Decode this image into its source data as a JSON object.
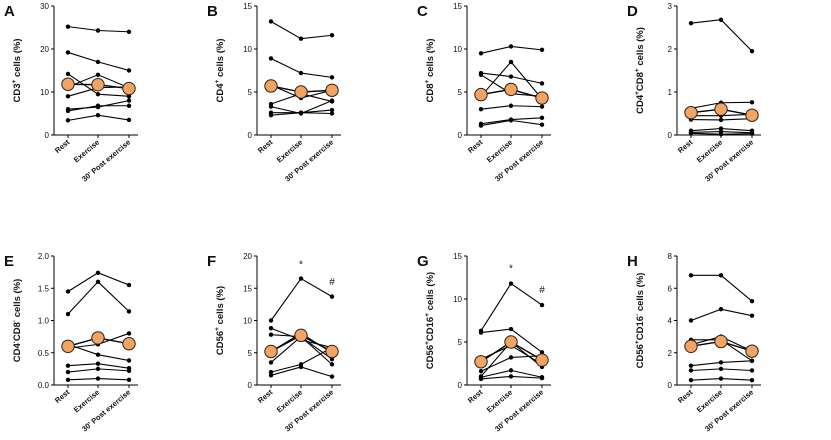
{
  "figure": {
    "categories": [
      "Rest",
      "Exercise",
      "30' Post exercise"
    ],
    "mean_marker_color": "#f4a460",
    "mean_marker_stroke": "#222222",
    "line_color": "#000000"
  },
  "chart_data": [
    {
      "type": "line",
      "letter": "A",
      "ylabel": [
        [
          "CD3",
          false
        ],
        [
          "+",
          true
        ],
        [
          " cells (%)",
          false
        ]
      ],
      "ylim": [
        0,
        30
      ],
      "yticks": [
        0,
        10,
        20,
        30
      ],
      "subjects": [
        [
          25.2,
          24.3,
          24.0
        ],
        [
          19.2,
          17.0,
          15.0
        ],
        [
          14.2,
          9.5,
          9.0
        ],
        [
          11.2,
          14.0,
          11.0
        ],
        [
          9.0,
          11.0,
          11.2
        ],
        [
          6.0,
          6.5,
          8.0
        ],
        [
          5.6,
          6.8,
          6.8
        ],
        [
          3.4,
          4.6,
          3.5
        ]
      ],
      "mean": [
        11.8,
        11.7,
        10.8
      ],
      "annotations": []
    },
    {
      "type": "line",
      "letter": "B",
      "ylabel": [
        [
          "CD4",
          false
        ],
        [
          "+",
          true
        ],
        [
          " cells (%)",
          false
        ]
      ],
      "ylim": [
        0,
        15
      ],
      "yticks": [
        0,
        5,
        10,
        15
      ],
      "subjects": [
        [
          13.2,
          11.2,
          11.6
        ],
        [
          8.9,
          7.2,
          6.7
        ],
        [
          5.8,
          4.3,
          5.2
        ],
        [
          3.6,
          4.8,
          3.9
        ],
        [
          3.3,
          2.5,
          4.0
        ],
        [
          2.6,
          2.6,
          2.9
        ],
        [
          2.3,
          2.6,
          2.5
        ]
      ],
      "mean": [
        5.7,
        5.0,
        5.2
      ],
      "annotations": []
    },
    {
      "type": "line",
      "letter": "C",
      "ylabel": [
        [
          "CD8",
          false
        ],
        [
          "+",
          true
        ],
        [
          " cells (%)",
          false
        ]
      ],
      "ylim": [
        0,
        15
      ],
      "yticks": [
        0,
        5,
        10,
        15
      ],
      "subjects": [
        [
          9.5,
          10.3,
          9.9
        ],
        [
          7.2,
          6.8,
          6.0
        ],
        [
          7.0,
          4.8,
          4.5
        ],
        [
          4.5,
          8.5,
          4.2
        ],
        [
          3.0,
          3.4,
          3.3
        ],
        [
          1.3,
          1.8,
          2.0
        ],
        [
          1.1,
          1.7,
          1.2
        ]
      ],
      "mean": [
        4.7,
        5.3,
        4.3
      ],
      "annotations": []
    },
    {
      "type": "line",
      "letter": "D",
      "ylabel": [
        [
          "CD4",
          false
        ],
        [
          "+",
          true
        ],
        [
          "CD8",
          false
        ],
        [
          "+",
          true
        ],
        [
          " cells (%)",
          false
        ]
      ],
      "ylim": [
        0,
        3
      ],
      "yticks": [
        0,
        1,
        2,
        3
      ],
      "subjects": [
        [
          2.6,
          2.68,
          1.95
        ],
        [
          0.62,
          0.75,
          0.76
        ],
        [
          0.45,
          0.45,
          0.48
        ],
        [
          0.36,
          0.35,
          0.38
        ],
        [
          0.1,
          0.15,
          0.1
        ],
        [
          0.06,
          0.08,
          0.05
        ],
        [
          0.04,
          0.02,
          0.03
        ]
      ],
      "mean": [
        0.52,
        0.6,
        0.46
      ],
      "annotations": []
    },
    {
      "type": "line",
      "letter": "E",
      "ylabel": [
        [
          "CD4",
          false
        ],
        [
          "-",
          true
        ],
        [
          "CD8",
          false
        ],
        [
          "-",
          true
        ],
        [
          " cells (%)",
          false
        ]
      ],
      "ylim": [
        0,
        2.0
      ],
      "yticks": [
        0,
        0.5,
        1.0,
        1.5,
        2.0
      ],
      "ytick_labels": [
        "0.0",
        "0.5",
        "1.0",
        "1.5",
        "2.0"
      ],
      "subjects": [
        [
          1.45,
          1.74,
          1.55
        ],
        [
          1.1,
          1.6,
          1.14
        ],
        [
          0.63,
          0.47,
          0.38
        ],
        [
          0.57,
          0.63,
          0.8
        ],
        [
          0.3,
          0.33,
          0.26
        ],
        [
          0.2,
          0.25,
          0.22
        ],
        [
          0.08,
          0.1,
          0.08
        ]
      ],
      "mean": [
        0.6,
        0.73,
        0.64
      ],
      "annotations": []
    },
    {
      "type": "line",
      "letter": "F",
      "ylabel": [
        [
          "CD56",
          false
        ],
        [
          "+",
          true
        ],
        [
          " cells (%)",
          false
        ]
      ],
      "ylim": [
        0,
        20
      ],
      "yticks": [
        0,
        5,
        10,
        15,
        20
      ],
      "subjects": [
        [
          10.0,
          16.5,
          13.7
        ],
        [
          8.8,
          7.0,
          5.8
        ],
        [
          7.8,
          7.5,
          4.0
        ],
        [
          5.2,
          8.0,
          5.0
        ],
        [
          3.5,
          7.5,
          3.2
        ],
        [
          2.0,
          3.2,
          5.8
        ],
        [
          1.5,
          2.8,
          1.3
        ]
      ],
      "mean": [
        5.2,
        7.7,
        5.2
      ],
      "annotations": [
        {
          "text": "*",
          "cat": 1,
          "y": 18.2
        },
        {
          "text": "#",
          "cat": 2,
          "y": 15.5
        }
      ]
    },
    {
      "type": "line",
      "letter": "G",
      "ylabel": [
        [
          "CD56",
          false
        ],
        [
          "+",
          true
        ],
        [
          "CD16",
          false
        ],
        [
          "+",
          true
        ],
        [
          " cells (%)",
          false
        ]
      ],
      "ylim": [
        0,
        15
      ],
      "yticks": [
        0,
        5,
        10,
        15
      ],
      "subjects": [
        [
          6.3,
          11.8,
          9.3
        ],
        [
          6.1,
          6.5,
          3.8
        ],
        [
          3.0,
          4.6,
          2.4
        ],
        [
          1.6,
          3.2,
          3.4
        ],
        [
          1.0,
          5.0,
          2.1
        ],
        [
          0.9,
          1.7,
          0.9
        ],
        [
          0.7,
          1.0,
          0.8
        ]
      ],
      "mean": [
        2.7,
        5.0,
        2.9
      ],
      "annotations": [
        {
          "text": "*",
          "cat": 1,
          "y": 13.2
        },
        {
          "text": "#",
          "cat": 2,
          "y": 10.7
        }
      ]
    },
    {
      "type": "line",
      "letter": "H",
      "ylabel": [
        [
          "CD56",
          false
        ],
        [
          "+",
          true
        ],
        [
          "CD16",
          false
        ],
        [
          "-",
          true
        ],
        [
          " cells (%)",
          false
        ]
      ],
      "ylim": [
        0,
        8
      ],
      "yticks": [
        0,
        2,
        4,
        6,
        8
      ],
      "subjects": [
        [
          6.8,
          6.8,
          5.2
        ],
        [
          4.0,
          4.7,
          4.3
        ],
        [
          2.8,
          2.8,
          1.5
        ],
        [
          2.5,
          3.0,
          2.1
        ],
        [
          1.2,
          1.4,
          1.5
        ],
        [
          0.9,
          1.0,
          0.9
        ],
        [
          0.3,
          0.4,
          0.3
        ]
      ],
      "mean": [
        2.4,
        2.7,
        2.1
      ],
      "annotations": []
    }
  ]
}
